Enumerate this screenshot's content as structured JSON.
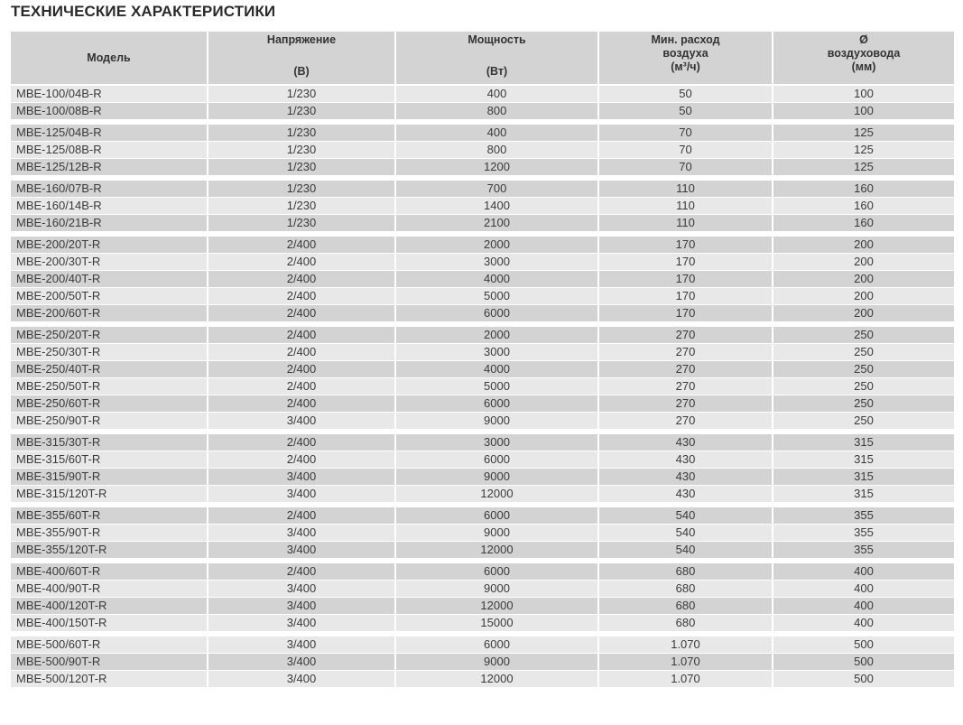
{
  "title": "ТЕХНИЧЕСКИЕ ХАРАКТЕРИСТИКИ",
  "headers": {
    "model": "Модель",
    "voltage": [
      "Напряжение",
      "(В)"
    ],
    "power": [
      "Мощность",
      "(Вт)"
    ],
    "airflow": [
      "Мин. расход",
      "воздуха",
      "(м³/ч)"
    ],
    "duct": [
      "Ø",
      "воздуховода",
      "(мм)"
    ]
  },
  "groups": [
    [
      [
        "MBE-100/04B-R",
        "1/230",
        "400",
        "50",
        "100"
      ],
      [
        "MBE-100/08B-R",
        "1/230",
        "800",
        "50",
        "100"
      ]
    ],
    [
      [
        "MBE-125/04B-R",
        "1/230",
        "400",
        "70",
        "125"
      ],
      [
        "MBE-125/08B-R",
        "1/230",
        "800",
        "70",
        "125"
      ],
      [
        "MBE-125/12B-R",
        "1/230",
        "1200",
        "70",
        "125"
      ]
    ],
    [
      [
        "MBE-160/07B-R",
        "1/230",
        "700",
        "110",
        "160"
      ],
      [
        "MBE-160/14B-R",
        "1/230",
        "1400",
        "110",
        "160"
      ],
      [
        "MBE-160/21B-R",
        "1/230",
        "2100",
        "110",
        "160"
      ]
    ],
    [
      [
        "MBE-200/20T-R",
        "2/400",
        "2000",
        "170",
        "200"
      ],
      [
        "MBE-200/30T-R",
        "2/400",
        "3000",
        "170",
        "200"
      ],
      [
        "MBE-200/40T-R",
        "2/400",
        "4000",
        "170",
        "200"
      ],
      [
        "MBE-200/50T-R",
        "2/400",
        "5000",
        "170",
        "200"
      ],
      [
        "MBE-200/60T-R",
        "2/400",
        "6000",
        "170",
        "200"
      ]
    ],
    [
      [
        "MBE-250/20T-R",
        "2/400",
        "2000",
        "270",
        "250"
      ],
      [
        "MBE-250/30T-R",
        "2/400",
        "3000",
        "270",
        "250"
      ],
      [
        "MBE-250/40T-R",
        "2/400",
        "4000",
        "270",
        "250"
      ],
      [
        "MBE-250/50T-R",
        "2/400",
        "5000",
        "270",
        "250"
      ],
      [
        "MBE-250/60T-R",
        "2/400",
        "6000",
        "270",
        "250"
      ],
      [
        "MBE-250/90T-R",
        "3/400",
        "9000",
        "270",
        "250"
      ]
    ],
    [
      [
        "MBE-315/30T-R",
        "2/400",
        "3000",
        "430",
        "315"
      ],
      [
        "MBE-315/60T-R",
        "2/400",
        "6000",
        "430",
        "315"
      ],
      [
        "MBE-315/90T-R",
        "3/400",
        "9000",
        "430",
        "315"
      ],
      [
        "MBE-315/120T-R",
        "3/400",
        "12000",
        "430",
        "315"
      ]
    ],
    [
      [
        "MBE-355/60T-R",
        "2/400",
        "6000",
        "540",
        "355"
      ],
      [
        "MBE-355/90T-R",
        "3/400",
        "9000",
        "540",
        "355"
      ],
      [
        "MBE-355/120T-R",
        "3/400",
        "12000",
        "540",
        "355"
      ]
    ],
    [
      [
        "MBE-400/60T-R",
        "2/400",
        "6000",
        "680",
        "400"
      ],
      [
        "MBE-400/90T-R",
        "3/400",
        "9000",
        "680",
        "400"
      ],
      [
        "MBE-400/120T-R",
        "3/400",
        "12000",
        "680",
        "400"
      ],
      [
        "MBE-400/150T-R",
        "3/400",
        "15000",
        "680",
        "400"
      ]
    ],
    [
      [
        "MBE-500/60T-R",
        "3/400",
        "6000",
        "1.070",
        "500"
      ],
      [
        "MBE-500/90T-R",
        "3/400",
        "9000",
        "1.070",
        "500"
      ],
      [
        "MBE-500/120T-R",
        "3/400",
        "12000",
        "1.070",
        "500"
      ]
    ]
  ]
}
